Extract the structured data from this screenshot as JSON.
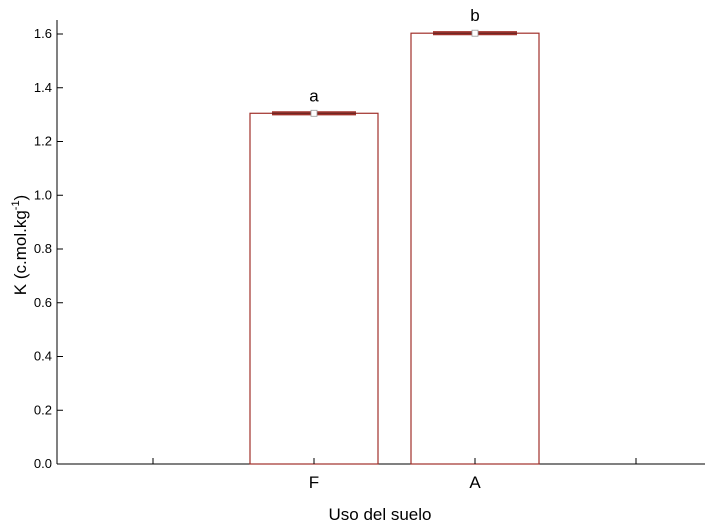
{
  "chart_data": {
    "type": "bar",
    "categories": [
      "F",
      "A"
    ],
    "values": [
      1.305,
      1.603
    ],
    "error": [
      0.005,
      0.005
    ],
    "significance_labels": [
      "a",
      "b"
    ],
    "xlabel": "Uso del suelo",
    "ylabel_main": "K (c.mol.kg",
    "ylabel_sup": "-1",
    "ylabel_close": ")",
    "ylim": [
      0,
      1.65
    ],
    "yticks": [
      "0.0",
      "0.2",
      "0.4",
      "0.6",
      "0.8",
      "1.0",
      "1.2",
      "1.4",
      "1.6"
    ],
    "ytick_values": [
      0,
      0.2,
      0.4,
      0.6,
      0.8,
      1.0,
      1.2,
      1.4,
      1.6
    ],
    "grid": false,
    "colors": {
      "bar_edge": "#a0302a",
      "bar_fill": "#ffffff",
      "axis": "#000000"
    }
  }
}
